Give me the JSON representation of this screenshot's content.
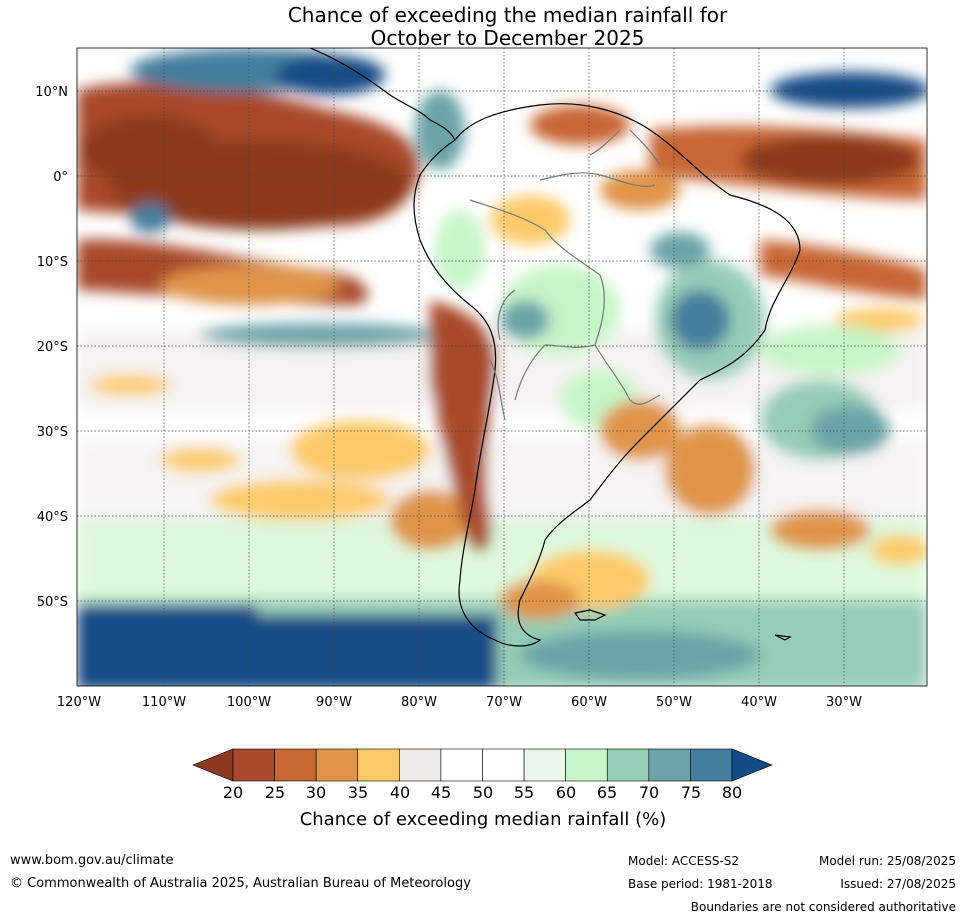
{
  "title": {
    "line1": "Chance of exceeding the median rainfall for",
    "line2": "October to December 2025"
  },
  "map": {
    "lat_labels": [
      "10°N",
      "0°",
      "10°S",
      "20°S",
      "30°S",
      "40°S",
      "50°S"
    ],
    "lon_labels": [
      "120°W",
      "110°W",
      "100°W",
      "90°W",
      "80°W",
      "70°W",
      "60°W",
      "50°W",
      "40°W",
      "30°W"
    ]
  },
  "colorbar": {
    "ticks": [
      "20",
      "25",
      "30",
      "35",
      "40",
      "45",
      "50",
      "55",
      "60",
      "65",
      "70",
      "75",
      "80"
    ],
    "label": "Chance of exceeding median rainfall (%)",
    "colors": [
      "#8b3a1f",
      "#a9482a",
      "#c86634",
      "#e0944a",
      "#fdca6a",
      "#eeebe8",
      "#ffffff",
      "#ffffff",
      "#eaf6ec",
      "#c6f5c7",
      "#96cdb7",
      "#6aa4a8",
      "#457e9e",
      "#124c86"
    ]
  },
  "footer": {
    "url": "www.bom.gov.au/climate",
    "copyright": "© Commonwealth of Australia 2025, Australian Bureau of Meteorology",
    "model": "Model: ACCESS-S2",
    "base_period": "Base period: 1981-2018",
    "model_run": "Model run: 25/08/2025",
    "issued": "Issued: 27/08/2025",
    "disclaimer": "Boundaries are not considered authoritative"
  }
}
